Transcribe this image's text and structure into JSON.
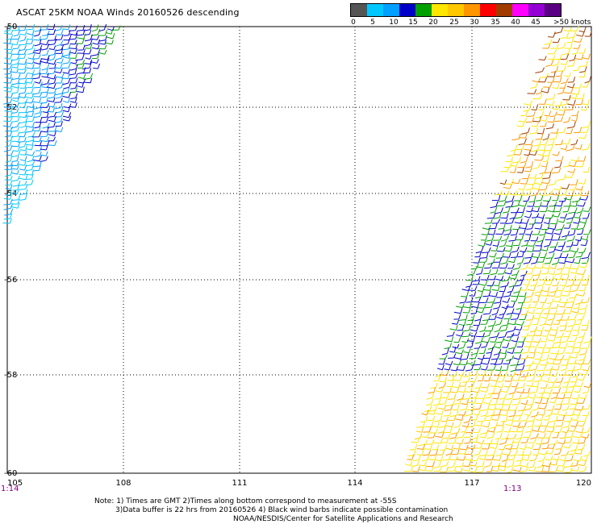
{
  "title": "ASCAT 25KM NOAA Winds 20160526 descending",
  "legend": {
    "colors": [
      "#555555",
      "#00c8ff",
      "#00a0ff",
      "#0000c8",
      "#00a000",
      "#ffe600",
      "#ffc800",
      "#ff9600",
      "#ff0000",
      "#a03c00",
      "#ff00ff",
      "#9400d3",
      "#5a0082"
    ],
    "labels": [
      "0",
      "5",
      "10",
      "15",
      "20",
      "25",
      "30",
      "35",
      "40",
      "45",
      ">50 knots"
    ]
  },
  "axes": {
    "lon_labels": [
      "105",
      "108",
      "111",
      "114",
      "117",
      "120"
    ],
    "lat_labels": [
      "-50",
      "-52",
      "-54",
      "-56",
      "-58",
      "-60"
    ],
    "lon_range": [
      105,
      120
    ],
    "lat_range": [
      -50,
      -60
    ],
    "grid": "dotted"
  },
  "pass_times": {
    "left": "1:14",
    "right": "1:13"
  },
  "notes": {
    "line1": "Note: 1) Times are GMT 2)Times along bottom correspond to measurement at -55S",
    "line2": "3)Data buffer is 22 hrs from 20160526 4) Black wind barbs indicate possible contamination",
    "line3": "NOAA/NESDIS/Center for Satellite Applications and Research"
  }
}
